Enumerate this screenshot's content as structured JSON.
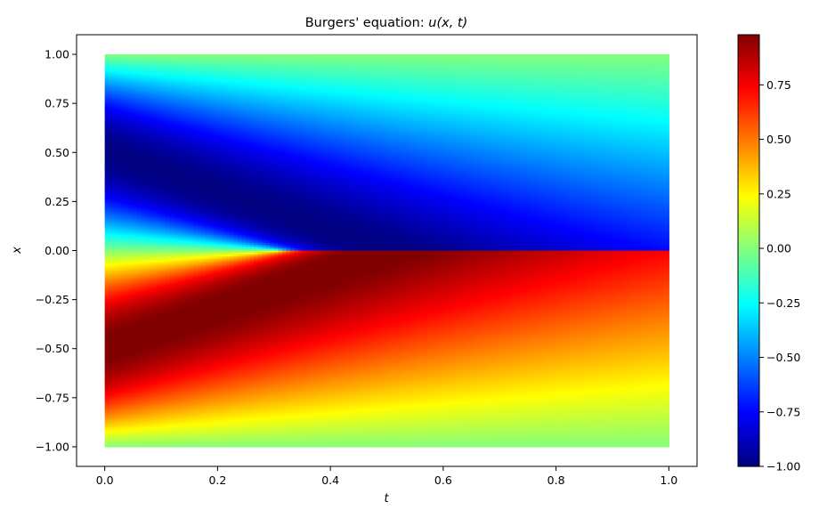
{
  "chart_data": {
    "type": "heatmap",
    "title": "Burgers' equation: u(x,t)",
    "title_prefix": "Burgers' equation: ",
    "title_math": "u(x, t)",
    "xlabel": "t",
    "ylabel": "x",
    "xlim": [
      -0.05,
      1.05
    ],
    "ylim": [
      -1.1,
      1.1
    ],
    "data_extent": {
      "t": [
        0.0,
        1.0
      ],
      "x": [
        -1.0,
        1.0
      ]
    },
    "xticks": [
      0.0,
      0.2,
      0.4,
      0.6,
      0.8,
      1.0
    ],
    "xtick_labels": [
      "0.0",
      "0.2",
      "0.4",
      "0.6",
      "0.8",
      "1.0"
    ],
    "yticks": [
      1.0,
      0.75,
      0.5,
      0.25,
      0.0,
      -0.25,
      -0.5,
      -0.75,
      -1.0
    ],
    "ytick_labels": [
      "1.00",
      "0.75",
      "0.50",
      "0.25",
      "0.00",
      "−0.25",
      "−0.50",
      "−0.75",
      "−1.00"
    ],
    "field": "u(x,t) = -sin(pi x) at t=0, steepening into a shock at x=0 near t=0.4",
    "initial_condition": "-sin(pi*x)",
    "shock_formation_t": 0.4,
    "colormap": "jet",
    "colorbar": {
      "range": [
        -1.0,
        0.98
      ],
      "ticks": [
        0.75,
        0.5,
        0.25,
        0.0,
        -0.25,
        -0.5,
        -0.75,
        -1.0
      ],
      "tick_labels": [
        "0.75",
        "0.50",
        "0.25",
        "0.00",
        "−0.25",
        "−0.50",
        "−0.75",
        "−1.00"
      ]
    },
    "grid": false,
    "legend": "none"
  }
}
